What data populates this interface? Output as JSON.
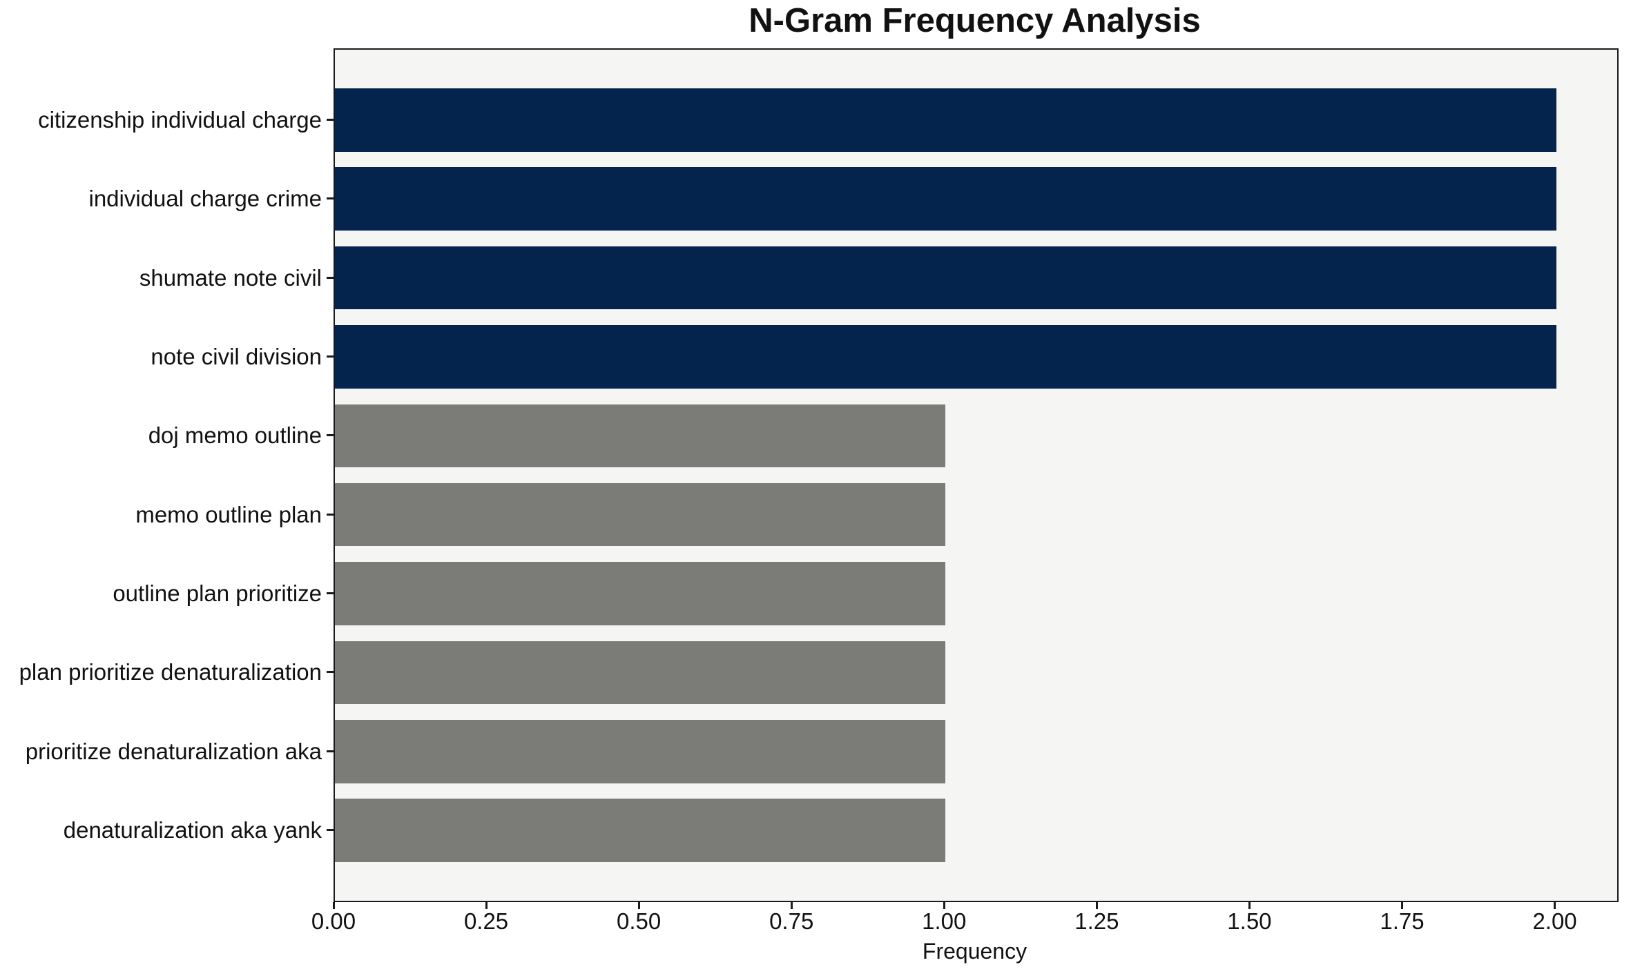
{
  "chart_data": {
    "type": "bar",
    "orientation": "horizontal",
    "title": "N-Gram Frequency Analysis",
    "xlabel": "Frequency",
    "ylabel": "",
    "categories": [
      "citizenship individual charge",
      "individual charge crime",
      "shumate note civil",
      "note civil division",
      "doj memo outline",
      "memo outline plan",
      "outline plan prioritize",
      "plan prioritize denaturalization",
      "prioritize denaturalization aka",
      "denaturalization aka yank"
    ],
    "values": [
      2,
      2,
      2,
      2,
      1,
      1,
      1,
      1,
      1,
      1
    ],
    "bar_colors": [
      "#04244d",
      "#04244d",
      "#04244d",
      "#04244d",
      "#7b7b77",
      "#7b7b77",
      "#7b7b77",
      "#7b7b77",
      "#7b7b77",
      "#7b7b77"
    ],
    "xlim": [
      0,
      2.1
    ],
    "x_ticks": [
      0,
      0.25,
      0.5,
      0.75,
      1,
      1.25,
      1.5,
      1.75,
      2
    ],
    "x_tick_labels": [
      "0.00",
      "0.25",
      "0.50",
      "0.75",
      "1.00",
      "1.25",
      "1.50",
      "1.75",
      "2.00"
    ],
    "grid": false,
    "legend": "none",
    "colors": {
      "high_frequency_bar": "#04244d",
      "low_frequency_bar": "#7b7b77",
      "plot_background": "#f5f5f4",
      "figure_background": "#ffffff",
      "spine": "#1a1a1a",
      "text": "#111111"
    }
  }
}
